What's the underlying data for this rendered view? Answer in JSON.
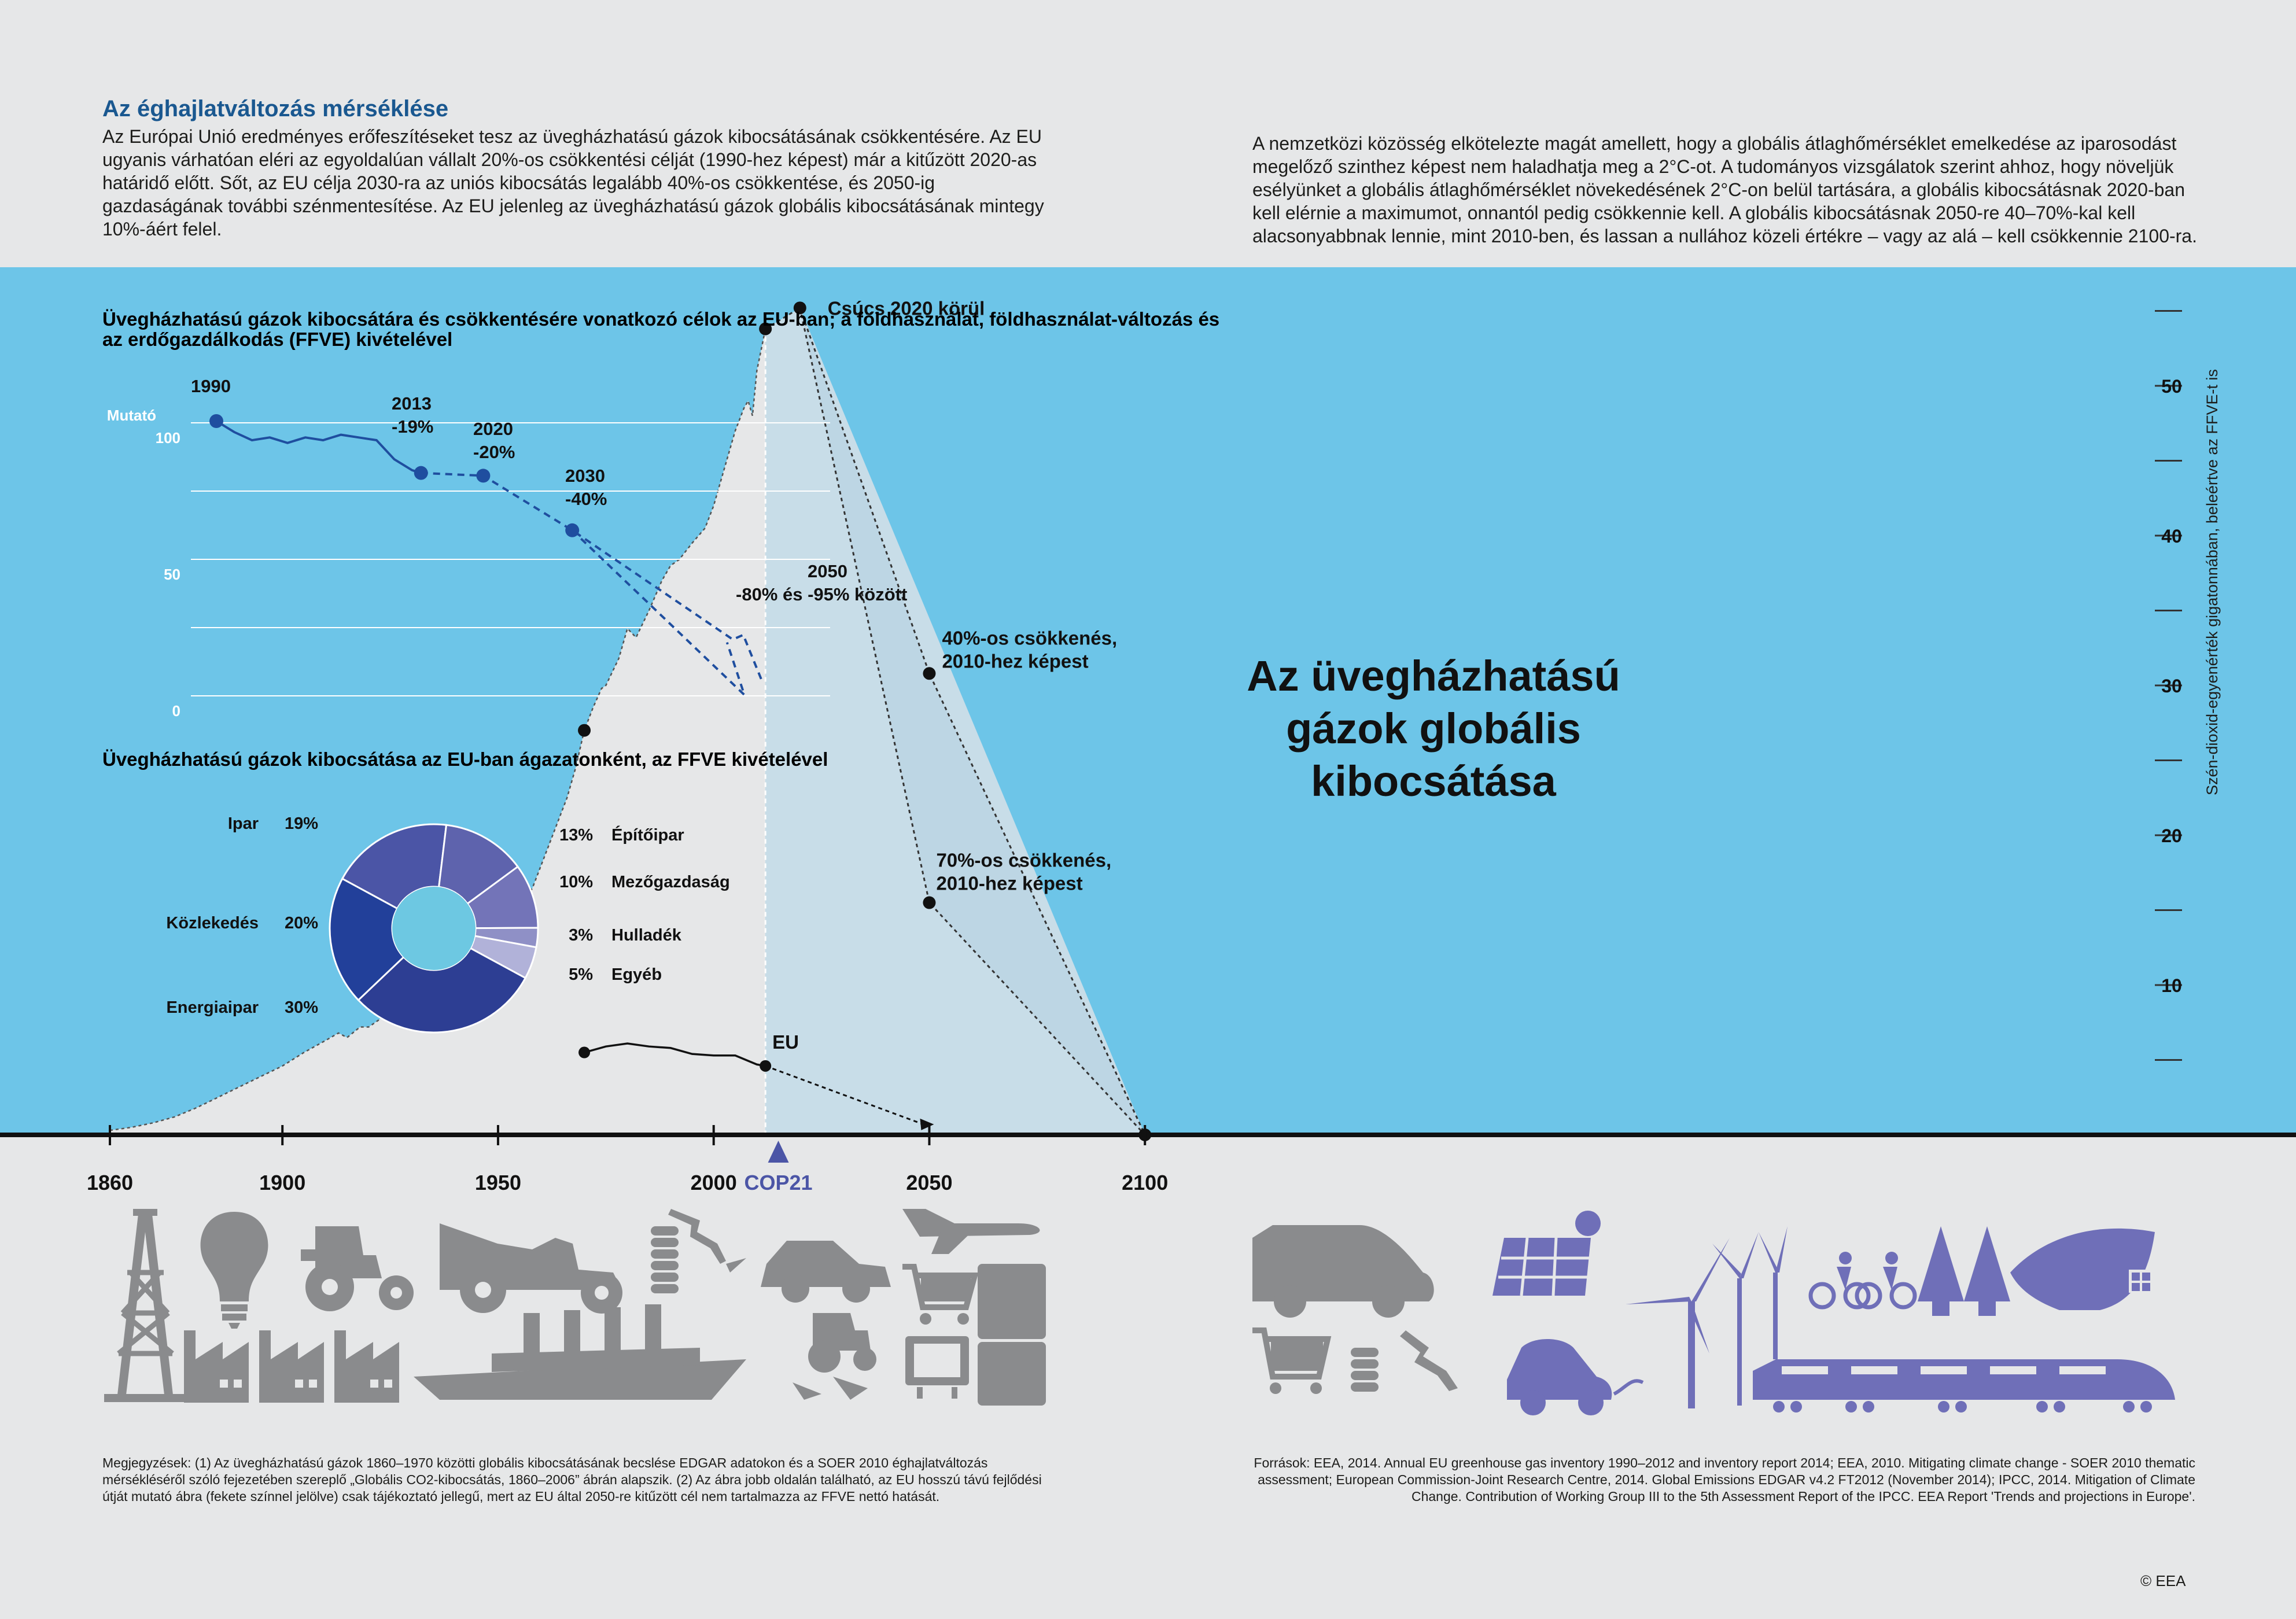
{
  "intro_left": {
    "title": "Az éghajlatváltozás mérséklése",
    "text": "Az Európai Unió eredményes erőfeszítéseket tesz az üvegházhatású gázok kibocsátásának csökkentésére. Az EU ugyanis várhatóan eléri az egyoldalúan vállalt 20%-os csökkentési célját (1990-hez képest) már a kitűzött 2020-as határidő előtt. Sőt, az EU célja 2030-ra az uniós kibocsátás legalább 40%-os csökkentése, és 2050-ig gazdaságának további szénmentesítése. Az EU jelenleg az üvegházhatású gázok globális kibocsátásának mintegy 10%-áért felel."
  },
  "intro_right": {
    "text": "A nemzetközi közösség elkötelezte magát amellett, hogy a globális átlaghőmérséklet emelkedése az iparosodást megelőző szinthez képest nem haladhatja meg a 2°C-ot. A tudományos vizsgálatok szerint ahhoz, hogy növeljük esélyünket a globális átlaghőmérséklet növekedésének 2°C-on belül tartására, a globális kibocsátásnak 2020-ban kell elérnie a maximumot, onnantól pedig csökkennie kell. A globális kibocsátásnak 2050-re 40–70%-kal kell alacsonyabbnak lennie, mint 2010-ben, és lassan a nullához közeli értékre – vagy az alá – kell csökkennie 2100-ra."
  },
  "colors": {
    "sky": "#6dc5e8",
    "ground": "#e6e7e8",
    "title_blue": "#1a5890",
    "eu_line": "#1f4e9f",
    "future_fill": "#c8dde8",
    "icon_gray": "#8a8b8d",
    "icon_purple": "#6f6fb8",
    "cop_purple": "#4b55a6",
    "donut": [
      "#4b55a6",
      "#5e63ad",
      "#7374b8",
      "#8f90c6",
      "#b1b2d9",
      "#2d3e93",
      "#22409a"
    ]
  },
  "chart_data": [
    {
      "type": "area",
      "title": "Az üvegházhatású gázok globális kibocsátása",
      "ylabel": "Szén-dioxid-egyenérték gigatonnában, beleértve az FFVE-t is",
      "xticks": [
        "1860",
        "1900",
        "1950",
        "2000",
        "2050",
        "2100"
      ],
      "yticks": [
        "10",
        "20",
        "30",
        "40",
        "50"
      ],
      "xlim": [
        1860,
        2100
      ],
      "ylim": [
        0,
        57
      ],
      "historical": {
        "x": [
          1860,
          1865,
          1870,
          1875,
          1880,
          1885,
          1890,
          1895,
          1900,
          1905,
          1910,
          1913,
          1915,
          1918,
          1920,
          1925,
          1929,
          1932,
          1935,
          1938,
          1940,
          1944,
          1946,
          1950,
          1953,
          1955,
          1958,
          1960,
          1962,
          1964,
          1966,
          1968,
          1970,
          1972,
          1974,
          1975,
          1978,
          1980,
          1982,
          1985,
          1988,
          1990,
          1992,
          1995,
          1998,
          2000,
          2002,
          2005,
          2007,
          2008,
          2009,
          2010,
          2012
        ],
        "y": [
          0.3,
          0.5,
          0.8,
          1.2,
          1.8,
          2.5,
          3.2,
          3.9,
          4.6,
          5.5,
          6.3,
          6.8,
          6.5,
          7.2,
          7.2,
          8.2,
          8.9,
          8.1,
          8.6,
          9.5,
          10.5,
          11,
          10.2,
          12,
          13.5,
          15,
          16.5,
          18,
          19.5,
          21,
          22.5,
          24.5,
          27,
          28.5,
          29.8,
          30,
          31.8,
          33.8,
          33.2,
          35,
          37,
          38,
          38.4,
          39.5,
          40.5,
          42,
          44,
          47,
          48.5,
          49,
          48,
          51,
          53.8
        ]
      },
      "annotations": [
        {
          "label": "Csúcs 2020 körül",
          "x": 2020,
          "y": 55.2
        },
        {
          "label": "40%-os csökkenés,",
          "label2": "2010-hez képest",
          "x": 2050,
          "y": 30.8
        },
        {
          "label": "70%-os csökkenés,",
          "label2": "2010-hez képest",
          "x": 2050,
          "y": 15.5
        }
      ],
      "eu_series": {
        "label": "EU",
        "x": [
          1970,
          1975,
          1980,
          1985,
          1990,
          1995,
          2000,
          2005,
          2010,
          2012
        ],
        "y": [
          5.5,
          5.9,
          6.1,
          5.9,
          5.8,
          5.4,
          5.3,
          5.3,
          4.7,
          4.6
        ],
        "projection": {
          "x": [
            2012,
            2050
          ],
          "y": [
            4.6,
            0.7
          ]
        }
      },
      "cop21_label": "COP21"
    },
    {
      "type": "line",
      "title": "Üvegházhatású gázok kibocsátára és csökkentésére vonatkozó célok az EU-ban; a földhasználat, földhasználat-változás és az erdőgazdálkodás (FFVE) kivételével",
      "ylabel": "Mutató",
      "yticks": [
        "100",
        "50",
        "0"
      ],
      "x": [
        1990,
        1992,
        1994,
        1996,
        1998,
        2000,
        2002,
        2004,
        2006,
        2008,
        2010,
        2012,
        2013
      ],
      "y": [
        100,
        96,
        93,
        94,
        92,
        94,
        93,
        95,
        94,
        93,
        86,
        82,
        81
      ],
      "targets": [
        {
          "year": "1990",
          "value": 100,
          "label": ""
        },
        {
          "year": "2013",
          "value": 81,
          "label": "-19%"
        },
        {
          "year": "2020",
          "value": 80,
          "label": "-20%"
        },
        {
          "year": "2030",
          "value": 60,
          "label": "-40%"
        },
        {
          "year": "2050",
          "value_range": [
            5,
            20
          ],
          "label": "-80% és -95% között"
        }
      ]
    },
    {
      "type": "pie",
      "title": "Üvegházhatású gázok kibocsátása az EU-ban ágazatonként, az FFVE kivételével",
      "slices": [
        {
          "label": "Ipar",
          "value": 19
        },
        {
          "label": "Építőipar",
          "value": 13
        },
        {
          "label": "Mezőgazdaság",
          "value": 10
        },
        {
          "label": "Hulladék",
          "value": 3
        },
        {
          "label": "Egyéb",
          "value": 5
        },
        {
          "label": "Energiaipar",
          "value": 30
        },
        {
          "label": "Közlekedés",
          "value": 20
        }
      ],
      "value_labels": [
        "19%",
        "13%",
        "10%",
        "3%",
        "5%",
        "30%",
        "20%"
      ]
    }
  ],
  "icons_left": [
    "oil-derrick-icon",
    "light-bulb-icon",
    "tractor-icon",
    "vintage-car-icon",
    "coins-icon",
    "car-icon",
    "airplane-icon",
    "factory-icon",
    "ship-icon",
    "shopping-cart-icon",
    "refrigerator-icon",
    "television-icon"
  ],
  "icons_right": [
    "car-icon",
    "solar-panel-icon",
    "wind-turbine-icon",
    "cyclists-icon",
    "trees-icon",
    "leaf-house-icon",
    "shopping-cart-icon",
    "coins-icon",
    "electric-car-icon",
    "train-icon"
  ],
  "notes_left": "Megjegyzések: (1) Az üvegházhatású gázok 1860–1970 közötti globális kibocsátásának becslése EDGAR adatokon és a SOER 2010 éghajlatváltozás mérsékléséről szóló fejezetében szereplő „Globális CO2-kibocsátás, 1860–2006” ábrán alapszik. (2) Az ábra jobb oldalán található, az EU hosszú távú fejlődési útját mutató ábra (fekete színnel jelölve) csak tájékoztató jellegű, mert az EU által 2050-re kitűzött cél nem tartalmazza az FFVE nettó hatását.",
  "notes_right": "Források: EEA, 2014. Annual EU greenhouse gas inventory 1990–2012 and inventory report 2014; EEA, 2010. Mitigating climate change - SOER 2010 thematic assessment; European Commission-Joint Research Centre, 2014. Global Emissions EDGAR v4.2 FT2012 (November 2014); IPCC, 2014. Mitigation of Climate Change. Contribution of Working Group III to the 5th Assessment Report of the IPCC. EEA Report 'Trends and projections in Europe'.",
  "copyright": "© EEA"
}
